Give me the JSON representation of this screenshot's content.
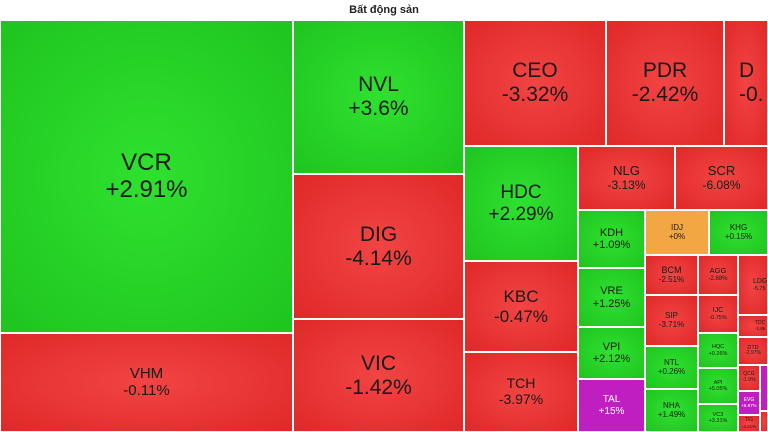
{
  "title": "Bất động sản",
  "colors": {
    "up": "#22cc22",
    "down": "#e02828",
    "flat": "#f2a742",
    "ceiling": "#c01ec0"
  },
  "tiles": [
    {
      "symbol": "VCR",
      "change": "+2.91%",
      "trend": "up"
    },
    {
      "symbol": "VHM",
      "change": "-0.11%",
      "trend": "down"
    },
    {
      "symbol": "NVL",
      "change": "+3.6%",
      "trend": "up"
    },
    {
      "symbol": "DIG",
      "change": "-4.14%",
      "trend": "down"
    },
    {
      "symbol": "VIC",
      "change": "-1.42%",
      "trend": "down"
    },
    {
      "symbol": "CEO",
      "change": "-3.32%",
      "trend": "down"
    },
    {
      "symbol": "PDR",
      "change": "-2.42%",
      "trend": "down"
    },
    {
      "symbol": "D",
      "change": "-0.",
      "trend": "down"
    },
    {
      "symbol": "HDC",
      "change": "+2.29%",
      "trend": "up"
    },
    {
      "symbol": "KBC",
      "change": "-0.47%",
      "trend": "down"
    },
    {
      "symbol": "TCH",
      "change": "-3.97%",
      "trend": "down"
    },
    {
      "symbol": "NLG",
      "change": "-3.13%",
      "trend": "down"
    },
    {
      "symbol": "SCR",
      "change": "-6.08%",
      "trend": "down"
    },
    {
      "symbol": "KDH",
      "change": "+1.09%",
      "trend": "up"
    },
    {
      "symbol": "IDJ",
      "change": "+0%",
      "trend": "flat"
    },
    {
      "symbol": "KHG",
      "change": "+0.15%",
      "trend": "up"
    },
    {
      "symbol": "VRE",
      "change": "+1.25%",
      "trend": "up"
    },
    {
      "symbol": "BCM",
      "change": "-2.51%",
      "trend": "down"
    },
    {
      "symbol": "AGG",
      "change": "-2.88%",
      "trend": "down"
    },
    {
      "symbol": "LDG",
      "change": "-5.75",
      "trend": "down"
    },
    {
      "symbol": "VPI",
      "change": "+2.12%",
      "trend": "up"
    },
    {
      "symbol": "SIP",
      "change": "-3.71%",
      "trend": "down"
    },
    {
      "symbol": "IJC",
      "change": "-0.75%",
      "trend": "down"
    },
    {
      "symbol": "TDC",
      "change": "-1.86",
      "trend": "down"
    },
    {
      "symbol": "HQC",
      "change": "+0.26%",
      "trend": "up"
    },
    {
      "symbol": "DTD",
      "change": "-2.97%",
      "trend": "down"
    },
    {
      "symbol": "NTL",
      "change": "+0.26%",
      "trend": "up"
    },
    {
      "symbol": "API",
      "change": "+5.05%",
      "trend": "up"
    },
    {
      "symbol": "QCG",
      "change": "-1.9%",
      "trend": "down"
    },
    {
      "symbol": "TAL",
      "change": "+15%",
      "trend": "ceiling"
    },
    {
      "symbol": "EVG",
      "change": "+6.97%",
      "trend": "ceiling"
    },
    {
      "symbol": "NHA",
      "change": "+1.49%",
      "trend": "up"
    },
    {
      "symbol": "VC3",
      "change": "+3.31%",
      "trend": "up"
    },
    {
      "symbol": "TIG",
      "change": "-4.21%",
      "trend": "down"
    },
    {
      "symbol": "",
      "change": "",
      "trend": "ceiling"
    },
    {
      "symbol": "",
      "change": "",
      "trend": "down"
    },
    {
      "symbol": "",
      "change": "",
      "trend": "down"
    }
  ]
}
